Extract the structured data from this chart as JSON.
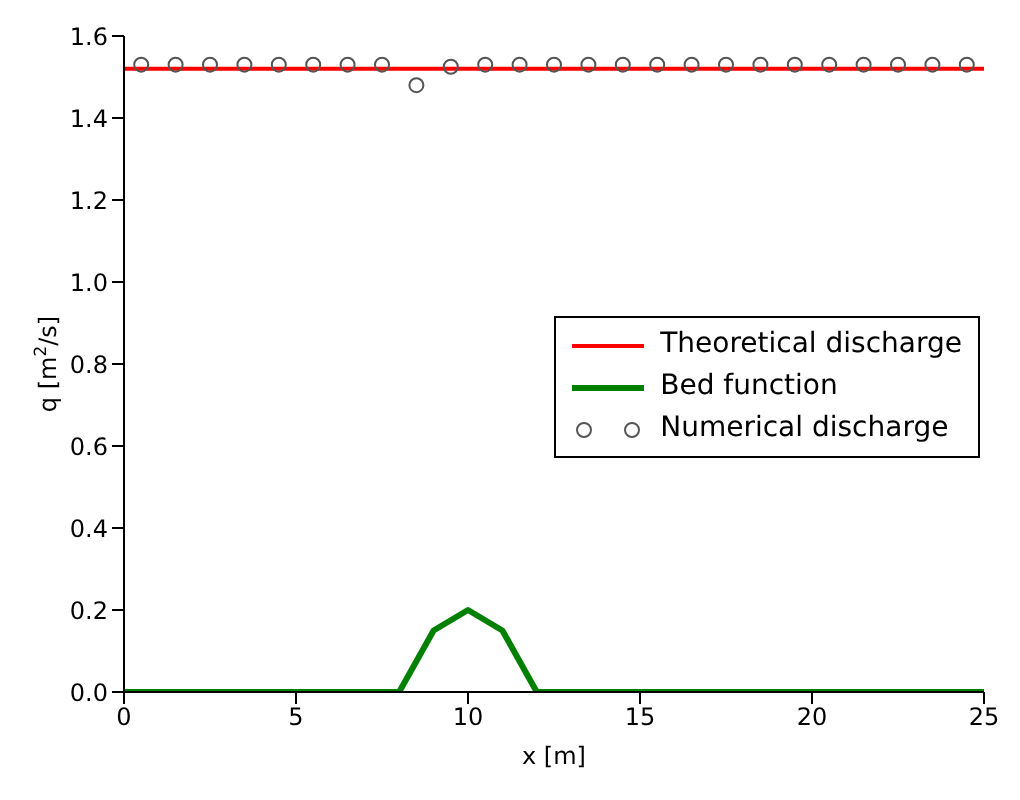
{
  "chart_data": {
    "type": "line",
    "xlabel": "x [m]",
    "ylabel": "q [m$^{2}$/s]",
    "xlim": [
      0,
      25
    ],
    "xticks": [
      0,
      5,
      10,
      15,
      20,
      25
    ],
    "ylim": [
      0,
      1.6
    ],
    "yticks": [
      {
        "value": 0,
        "label": "0.0"
      },
      {
        "value": 0.2,
        "label": "0.2"
      },
      {
        "value": 0.4,
        "label": "0.4"
      },
      {
        "value": 0.6,
        "label": "0.6"
      },
      {
        "value": 0.8,
        "label": "0.8"
      },
      {
        "value": 1.0,
        "label": "1.0"
      },
      {
        "value": 1.2,
        "label": "1.2"
      },
      {
        "value": 1.4,
        "label": "1.4"
      },
      {
        "value": 1.6,
        "label": "1.6"
      }
    ],
    "grid": false,
    "legend": "right",
    "series": [
      {
        "name": "Theoretical discharge",
        "color": "#ff0000",
        "x": [
          0,
          25
        ],
        "values": [
          1.52,
          1.52
        ],
        "marker": "none"
      },
      {
        "name": "Bed function",
        "color": "#008000",
        "x": [
          0,
          8,
          9,
          10,
          11,
          12,
          25
        ],
        "values": [
          0,
          0,
          0.15,
          0.2,
          0.15,
          0,
          0
        ],
        "marker": "none"
      },
      {
        "name": "Numerical discharge",
        "type": "scatter",
        "color": "#555555",
        "marker": "circle",
        "x": [
          0.5,
          1.5,
          2.5,
          3.5,
          4.5,
          5.5,
          6.5,
          7.5,
          8.5,
          9.5,
          10.5,
          11.5,
          12.5,
          13.5,
          14.5,
          15.5,
          16.5,
          17.5,
          18.5,
          19.5,
          20.5,
          21.5,
          22.5,
          23.5,
          24.5
        ],
        "values": [
          1.53,
          1.53,
          1.53,
          1.53,
          1.53,
          1.53,
          1.53,
          1.53,
          1.48,
          1.525,
          1.53,
          1.53,
          1.53,
          1.53,
          1.53,
          1.53,
          1.53,
          1.53,
          1.53,
          1.53,
          1.53,
          1.53,
          1.53,
          1.53,
          1.53
        ]
      }
    ]
  }
}
